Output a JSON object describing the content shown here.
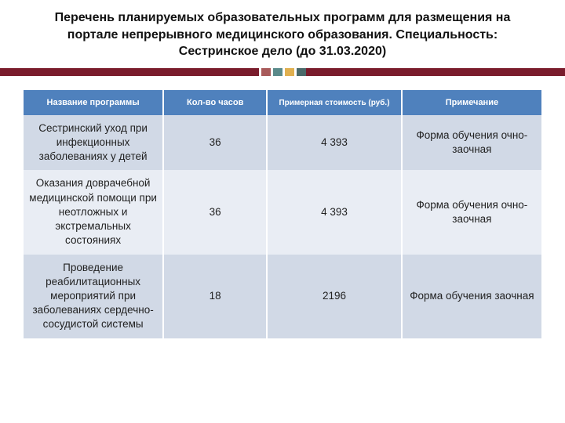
{
  "title": "Перечень планируемых образовательных программ для размещения на портале непрерывного медицинского образования.  Специальность: Сестринское дело (до 31.03.2020)",
  "stripe": {
    "wide_color": "#7a1c2c",
    "accents": [
      "#a85a5a",
      "#5a8a8a",
      "#e0b050",
      "#4a6a6a"
    ]
  },
  "table": {
    "type": "table",
    "header_bg": "#4f81bd",
    "header_text_color": "#ffffff",
    "row_colors": [
      "#d1d9e6",
      "#e9edf4",
      "#d1d9e6"
    ],
    "col_widths_pct": [
      27,
      20,
      26,
      27
    ],
    "columns": [
      "Название программы",
      "Кол-во часов",
      "Примерная стоимость (руб.)",
      "Примечание"
    ],
    "rows": [
      {
        "name": "Сестринский уход при инфекционных заболеваниях у детей",
        "hours": "36",
        "cost": "4 393",
        "note": "Форма обучения очно-заочная"
      },
      {
        "name": "Оказания доврачебной медицинской помощи при неотложных и экстремальных состояниях",
        "hours": "36",
        "cost": "4 393",
        "note": "Форма обучения очно-заочная"
      },
      {
        "name": "Проведение реабилитационных мероприятий при заболеваниях сердечно-сосудистой системы",
        "hours": "18",
        "cost": "2196",
        "note": "Форма обучения заочная"
      }
    ]
  }
}
